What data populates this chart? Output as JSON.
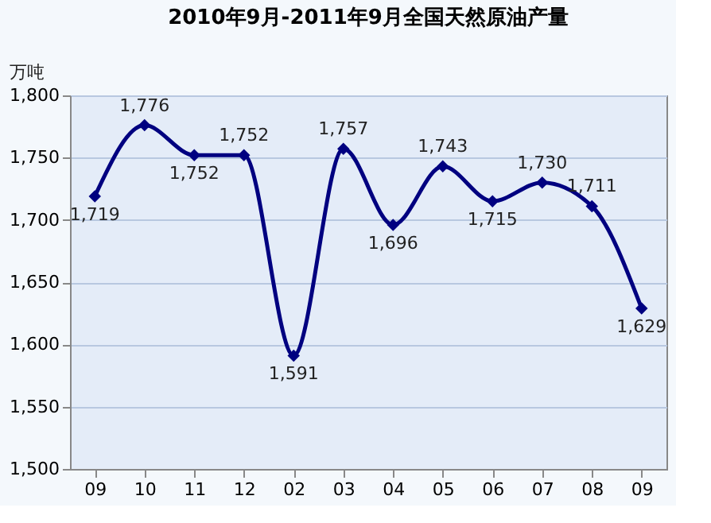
{
  "chart_data": {
    "type": "line",
    "title": "2010年9月-2011年9月全国天然原油产量",
    "ylabel": "万吨",
    "categories": [
      "09",
      "10",
      "11",
      "12",
      "02",
      "03",
      "04",
      "05",
      "06",
      "07",
      "08",
      "09"
    ],
    "values": [
      1719,
      1776,
      1752,
      1752,
      1591,
      1757,
      1696,
      1743,
      1715,
      1730,
      1711,
      1629
    ],
    "value_labels": [
      "1,719",
      "1,776",
      "1,752",
      "1,752",
      "1,591",
      "1,757",
      "1,696",
      "1,743",
      "1,715",
      "1,730",
      "1,711",
      "1,629"
    ],
    "color": "#000080",
    "ylim": [
      1500,
      1800
    ],
    "yticks": [
      {
        "value": 1500,
        "label": "1,500"
      },
      {
        "value": 1550,
        "label": "1,550"
      },
      {
        "value": 1600,
        "label": "1,600"
      },
      {
        "value": 1650,
        "label": "1,650"
      },
      {
        "value": 1700,
        "label": "1,700"
      },
      {
        "value": 1750,
        "label": "1,750"
      },
      {
        "value": 1800,
        "label": "1,800"
      }
    ],
    "grid": "y",
    "marker": "diamond",
    "line_style": "solid"
  }
}
